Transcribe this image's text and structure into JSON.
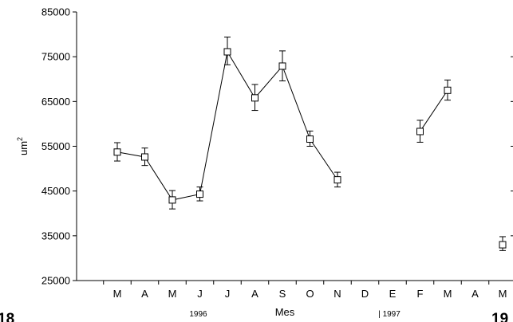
{
  "chart_data": {
    "type": "line",
    "ylabel": "um",
    "ylabel_superscript": "2",
    "xlabel": "Mes",
    "ylim": [
      25000,
      85000
    ],
    "yticks": [
      25000,
      35000,
      45000,
      55000,
      65000,
      75000,
      85000
    ],
    "ytick_labels": [
      "25000",
      "35000",
      "45000",
      "55000",
      "65000",
      "75000",
      "85000"
    ],
    "categories": [
      "M",
      "A",
      "M",
      "J",
      "J",
      "A",
      "S",
      "O",
      "N",
      "D",
      "E",
      "F",
      "M",
      "A",
      "M"
    ],
    "series": [
      {
        "values": [
          53700,
          52600,
          43000,
          44300,
          76100,
          65800,
          72900,
          56600,
          47500,
          null,
          null,
          58300,
          67500,
          null,
          33000
        ],
        "error_low": [
          51700,
          50700,
          41000,
          42800,
          73200,
          63000,
          69600,
          55000,
          45900,
          null,
          null,
          55900,
          65300,
          null,
          31700
        ],
        "error_high": [
          55800,
          54600,
          45100,
          45900,
          79400,
          68800,
          76300,
          58400,
          49200,
          null,
          null,
          60800,
          69800,
          null,
          34800
        ],
        "segments": [
          [
            0,
            8
          ],
          [
            11,
            12
          ],
          [
            14,
            14
          ]
        ]
      }
    ],
    "year_markers": [
      {
        "label": "1996",
        "category_index": 3,
        "marker": ""
      },
      {
        "label": "1997",
        "category_index": 10,
        "marker": "|"
      }
    ],
    "edge_labels": {
      "left": "18",
      "right": "19"
    },
    "grid": false,
    "legend": "none"
  }
}
